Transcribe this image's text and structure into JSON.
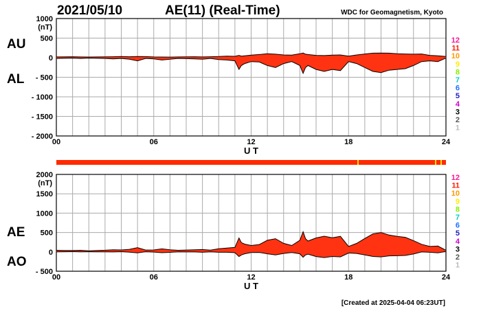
{
  "header": {
    "date": "2021/05/10",
    "title": "AE(11) (Real-Time)",
    "source": "WDC for Geomagnetism, Kyoto"
  },
  "footer": {
    "created": "[Created at 2025-04-04 06:23UT]"
  },
  "legend": {
    "labels": [
      "12",
      "11",
      "10",
      "9",
      "8",
      "7",
      "6",
      "5",
      "4",
      "3",
      "2",
      "1"
    ],
    "colors": [
      "#ff1493",
      "#ff1a00",
      "#ff9900",
      "#ffee00",
      "#88ee00",
      "#00cccc",
      "#1e6fff",
      "#2020c0",
      "#cc00cc",
      "#000000",
      "#555555",
      "#bbbbbb"
    ]
  },
  "colors": {
    "fill": "#ff3311",
    "line": "#000000",
    "grid": "#aaaaaa",
    "stripe": "#ff2a00",
    "stripe_marks": "#ffdd00"
  },
  "chart_data": [
    {
      "type": "area",
      "name": "AU/AL",
      "side_labels": [
        "AU",
        "AL"
      ],
      "unit": "(nT)",
      "xlabel": "U T",
      "xlim": [
        0,
        24
      ],
      "x_ticks": [
        "00",
        "06",
        "12",
        "18",
        "24"
      ],
      "x_tick_values": [
        0,
        6,
        12,
        18,
        24
      ],
      "ylim": [
        -2000,
        1000
      ],
      "y_ticks": [
        1000,
        500,
        0,
        -500,
        -1000,
        -1500,
        -2000
      ],
      "y_tick_labels": [
        "1000",
        "500",
        "0",
        "- 500",
        "- 1000",
        "- 1500",
        "- 2000"
      ],
      "grid": true,
      "x": [
        0,
        0.5,
        1,
        1.5,
        2,
        2.5,
        3,
        3.5,
        4,
        4.5,
        5,
        5.5,
        6,
        6.5,
        7,
        7.5,
        8,
        8.5,
        9,
        9.5,
        10,
        10.5,
        11,
        11.25,
        11.4,
        11.6,
        12,
        12.5,
        13,
        13.5,
        14,
        14.5,
        15,
        15.2,
        15.35,
        15.5,
        16,
        16.5,
        17,
        17.5,
        18,
        18.5,
        19,
        19.5,
        20,
        20.5,
        21,
        21.5,
        22,
        22.5,
        23,
        23.5,
        24
      ],
      "series": [
        {
          "name": "AU",
          "values": [
            20,
            22,
            25,
            20,
            18,
            20,
            22,
            25,
            30,
            25,
            30,
            28,
            20,
            18,
            15,
            20,
            22,
            25,
            20,
            25,
            30,
            40,
            35,
            60,
            40,
            50,
            65,
            80,
            100,
            90,
            70,
            65,
            100,
            120,
            90,
            80,
            60,
            55,
            65,
            70,
            40,
            70,
            95,
            115,
            120,
            115,
            100,
            95,
            90,
            95,
            60,
            50,
            30
          ]
        },
        {
          "name": "AL",
          "values": [
            -20,
            -15,
            -10,
            -20,
            -10,
            -15,
            -20,
            -30,
            -20,
            -40,
            -80,
            -20,
            -30,
            -60,
            -40,
            -20,
            -25,
            -30,
            -40,
            -20,
            -50,
            -60,
            -80,
            -300,
            -200,
            -150,
            -100,
            -110,
            -200,
            -250,
            -150,
            -100,
            -200,
            -400,
            -250,
            -200,
            -300,
            -350,
            -300,
            -330,
            -100,
            -150,
            -250,
            -350,
            -380,
            -320,
            -300,
            -280,
            -200,
            -100,
            -80,
            -100,
            -10
          ]
        }
      ]
    },
    {
      "type": "area",
      "name": "AE/AO",
      "side_labels": [
        "AE",
        "AO"
      ],
      "unit": "(nT)",
      "xlabel": "U T",
      "xlim": [
        0,
        24
      ],
      "x_ticks": [
        "00",
        "06",
        "12",
        "18",
        "24"
      ],
      "x_tick_values": [
        0,
        6,
        12,
        18,
        24
      ],
      "ylim": [
        -500,
        2000
      ],
      "y_ticks": [
        2000,
        1500,
        1000,
        500,
        0,
        -500
      ],
      "y_tick_labels": [
        "2000",
        "1500",
        "1000",
        "500",
        "0",
        "- 500"
      ],
      "grid": true,
      "x": [
        0,
        0.5,
        1,
        1.5,
        2,
        2.5,
        3,
        3.5,
        4,
        4.5,
        5,
        5.5,
        6,
        6.5,
        7,
        7.5,
        8,
        8.5,
        9,
        9.5,
        10,
        10.5,
        11,
        11.25,
        11.4,
        11.6,
        12,
        12.5,
        13,
        13.5,
        14,
        14.5,
        15,
        15.2,
        15.35,
        15.5,
        16,
        16.5,
        17,
        17.5,
        18,
        18.5,
        19,
        19.5,
        20,
        20.5,
        21,
        21.5,
        22,
        22.5,
        23,
        23.5,
        24
      ],
      "series": [
        {
          "name": "AE",
          "values": [
            40,
            37,
            35,
            40,
            28,
            35,
            42,
            55,
            50,
            65,
            110,
            48,
            50,
            78,
            55,
            40,
            47,
            55,
            60,
            45,
            80,
            100,
            115,
            360,
            240,
            200,
            165,
            190,
            300,
            340,
            220,
            165,
            300,
            520,
            340,
            280,
            360,
            405,
            365,
            400,
            140,
            220,
            345,
            465,
            500,
            435,
            400,
            375,
            290,
            195,
            140,
            150,
            40
          ]
        },
        {
          "name": "AO",
          "values": [
            0,
            3,
            7,
            0,
            4,
            2,
            1,
            -2,
            5,
            -7,
            -25,
            4,
            -5,
            -21,
            -12,
            0,
            -1,
            -2,
            -10,
            2,
            -10,
            -10,
            -22,
            -120,
            -80,
            -50,
            -17,
            -15,
            -50,
            -80,
            -40,
            -17,
            -50,
            -140,
            -80,
            -60,
            -120,
            -148,
            -118,
            -130,
            -30,
            -40,
            -78,
            -118,
            -130,
            -102,
            -100,
            -92,
            -55,
            -2,
            -10,
            -25,
            10
          ]
        }
      ]
    }
  ]
}
